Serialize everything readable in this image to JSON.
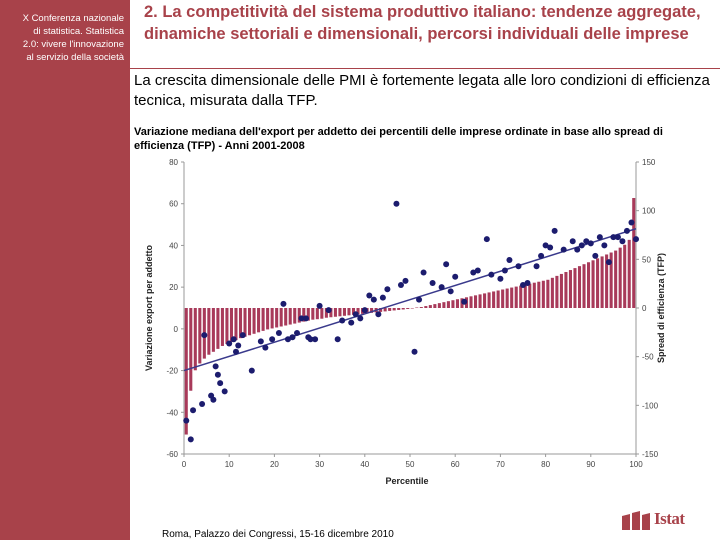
{
  "sidebar": {
    "lines": [
      "X Conferenza nazionale",
      "di statistica. Statistica",
      "2.0: vivere l'innovazione",
      "al servizio della società"
    ]
  },
  "header": {
    "title": "2. La competitività del sistema produttivo italiano: tendenze aggregate, dinamiche settoriali e dimensionali, percorsi individuali delle imprese",
    "subtitle": "La crescita dimensionale delle PMI è fortemente legata alle loro condizioni di efficienza tecnica, misurata dalla TFP."
  },
  "footer": {
    "text": "Roma, Palazzo dei Congressi, 15-16 dicembre 2010",
    "logo_text": "Istat"
  },
  "colors": {
    "accent": "#a8424a",
    "bars": "#a83a5a",
    "points": "#1c1c6e",
    "trend": "#3a3a8c"
  },
  "chart_data": {
    "type": "bar",
    "title": "Variazione mediana dell'export per addetto dei percentili delle imprese ordinate in base allo spread di efficienza (TFP) - Anni 2001-2008",
    "xlabel": "Percentile",
    "ylabel": "Variazione export per addetto",
    "y2label": "Spread di efficienza (TFP)",
    "xlim": [
      0,
      100
    ],
    "ylim": [
      -60,
      80
    ],
    "y2lim": [
      -150,
      150
    ],
    "xticks": [
      0,
      10,
      20,
      30,
      40,
      50,
      60,
      70,
      80,
      90,
      100
    ],
    "yticks": [
      -60,
      -40,
      -20,
      0,
      20,
      40,
      60,
      80
    ],
    "y2ticks": [
      -150,
      -100,
      -50,
      0,
      50,
      100,
      150
    ],
    "grid": false,
    "series": [
      {
        "type": "bar",
        "axis": "right",
        "x": [
          1,
          2,
          3,
          4,
          5,
          6,
          7,
          8,
          9,
          10,
          11,
          12,
          13,
          14,
          15,
          16,
          17,
          18,
          19,
          20,
          21,
          22,
          23,
          24,
          25,
          26,
          27,
          28,
          29,
          30,
          31,
          32,
          33,
          34,
          35,
          36,
          37,
          38,
          39,
          40,
          41,
          42,
          43,
          44,
          45,
          46,
          47,
          48,
          49,
          50,
          51,
          52,
          53,
          54,
          55,
          56,
          57,
          58,
          59,
          60,
          61,
          62,
          63,
          64,
          65,
          66,
          67,
          68,
          69,
          70,
          71,
          72,
          73,
          74,
          75,
          76,
          77,
          78,
          79,
          80,
          81,
          82,
          83,
          84,
          85,
          86,
          87,
          88,
          89,
          90,
          91,
          92,
          93,
          94,
          95,
          96,
          97,
          98,
          99,
          100
        ],
        "values": [
          -130,
          -85,
          -64,
          -57,
          -52,
          -48,
          -45,
          -42,
          -39,
          -37,
          -35,
          -33,
          -31,
          -29.5,
          -28,
          -26.5,
          -25,
          -23.5,
          -22,
          -21,
          -20,
          -19,
          -18,
          -17,
          -16,
          -15,
          -14,
          -13,
          -12,
          -11.5,
          -11,
          -10,
          -9.5,
          -9,
          -8.5,
          -8,
          -7.5,
          -7,
          -6.5,
          -6,
          -5.5,
          -5,
          -4.5,
          -4,
          -3.5,
          -3,
          -2.5,
          -2,
          -1.5,
          -1,
          -0.5,
          0.5,
          1,
          2,
          3,
          4,
          5,
          6,
          7,
          8,
          9,
          10,
          11,
          12,
          13,
          14,
          15,
          16,
          17,
          18,
          19,
          20,
          21,
          22,
          23,
          24,
          25,
          26,
          27,
          28,
          29,
          31,
          33,
          35,
          37,
          39,
          41,
          43,
          45,
          47,
          49,
          51,
          53,
          55,
          57,
          59,
          62,
          65,
          70,
          113
        ]
      },
      {
        "type": "scatter",
        "axis": "left",
        "x": [
          0.5,
          1.5,
          2,
          4,
          4.5,
          6,
          6.5,
          7,
          7.5,
          8,
          9,
          10,
          11,
          11.5,
          12,
          13,
          15,
          17,
          18,
          19.5,
          21,
          22,
          23,
          24,
          25,
          26,
          27,
          27.5,
          28,
          29,
          30,
          32,
          34,
          35,
          37,
          38,
          39,
          40,
          41,
          42,
          43,
          44,
          45,
          47,
          48,
          49,
          51,
          52,
          53,
          55,
          57,
          58,
          59,
          60,
          62,
          64,
          65,
          67,
          68,
          70,
          71,
          72,
          74,
          75,
          76,
          78,
          79,
          80,
          81,
          82,
          84,
          86,
          87,
          88,
          89,
          90,
          91,
          92,
          93,
          94,
          95,
          96,
          97,
          98,
          99,
          100
        ],
        "y": [
          -44,
          -53,
          -39,
          -36,
          -3,
          -32,
          -34,
          -18,
          -22,
          -26,
          -30,
          -7,
          -5,
          -11,
          -8,
          -3,
          -20,
          -6,
          -9,
          -5,
          -2,
          12,
          -5,
          -4,
          -2,
          5,
          5,
          -4,
          -5,
          -5,
          11,
          9,
          -5,
          4,
          3,
          7,
          5,
          9,
          16,
          14,
          7,
          15,
          19,
          60,
          21,
          23,
          -11,
          14,
          27,
          22,
          20,
          31,
          18,
          25,
          13,
          27,
          28,
          43,
          26,
          24,
          28,
          33,
          30,
          21,
          22,
          30,
          35,
          40,
          39,
          47,
          38,
          42,
          38,
          40,
          42,
          41,
          35,
          44,
          40,
          32,
          44,
          44,
          42,
          47,
          51,
          43
        ]
      },
      {
        "type": "line",
        "axis": "left",
        "name": "",
        "x": [
          0,
          100
        ],
        "y": [
          -20,
          48
        ]
      }
    ]
  }
}
